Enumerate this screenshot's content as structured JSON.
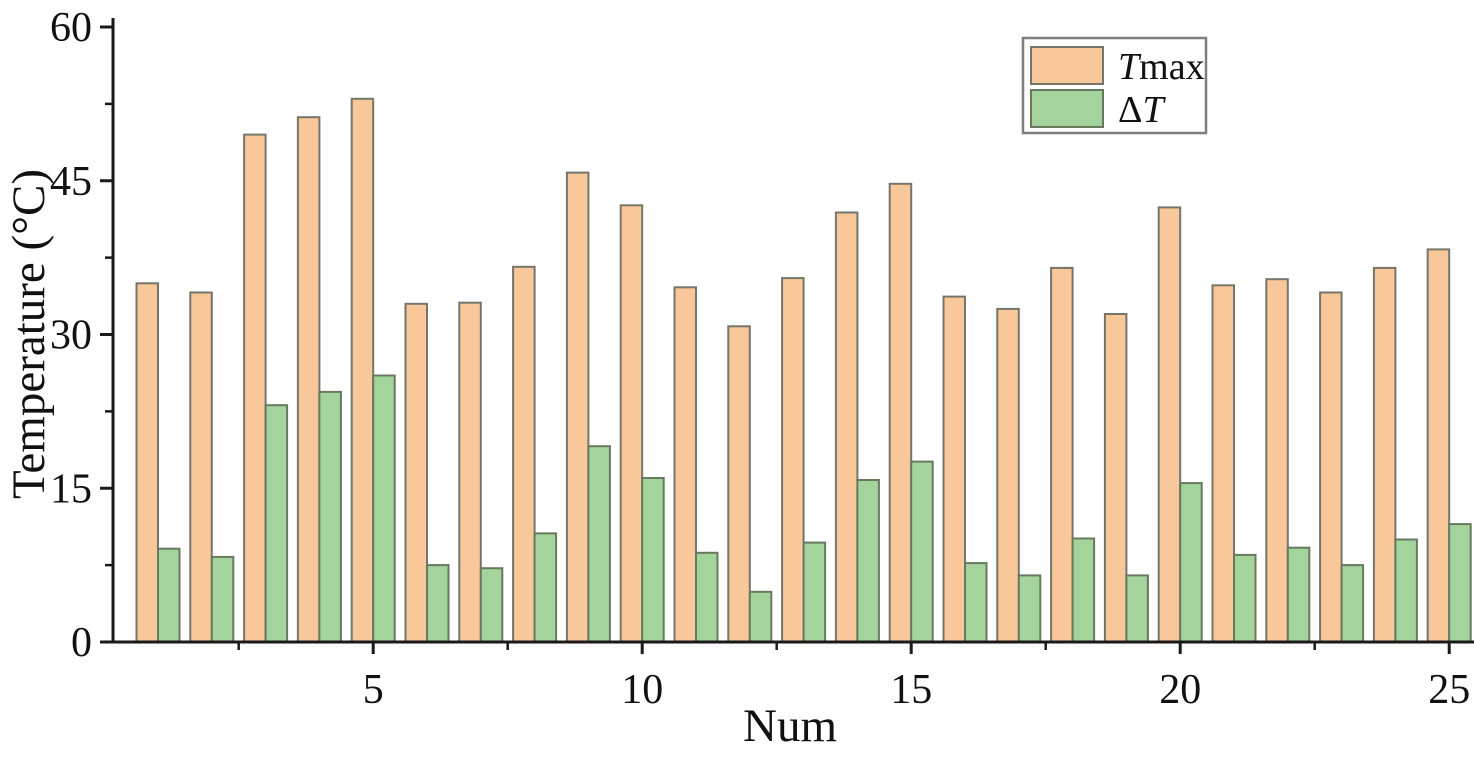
{
  "chart_data": {
    "type": "bar",
    "title": "",
    "xlabel": "Num",
    "ylabel": "Temperature (°C)",
    "categories": [
      1,
      2,
      3,
      4,
      5,
      6,
      7,
      8,
      9,
      10,
      11,
      12,
      13,
      14,
      15,
      16,
      17,
      18,
      19,
      20,
      21,
      22,
      23,
      24,
      25
    ],
    "series": [
      {
        "name": "Tmax",
        "fill": "#F9C89A",
        "border": "#75756A",
        "values": [
          35.0,
          34.1,
          49.5,
          51.2,
          53.0,
          33.0,
          33.1,
          36.6,
          45.8,
          42.6,
          34.6,
          30.8,
          35.5,
          41.9,
          44.7,
          33.7,
          32.5,
          36.5,
          32.0,
          42.4,
          34.8,
          35.4,
          34.1,
          36.5,
          38.3
        ]
      },
      {
        "name": "ΔT",
        "fill": "#A3D49B",
        "border": "#68795F",
        "values": [
          9.1,
          8.3,
          23.1,
          24.4,
          26.0,
          7.5,
          7.2,
          10.6,
          19.1,
          16.0,
          8.7,
          4.9,
          9.7,
          15.8,
          17.6,
          7.7,
          6.5,
          10.1,
          6.5,
          15.5,
          8.5,
          9.2,
          7.5,
          10.0,
          11.5
        ]
      }
    ],
    "ylim": [
      0,
      60
    ],
    "yticks_major": [
      0,
      15,
      30,
      45,
      60
    ],
    "yticks_minor": [
      7.5,
      22.5,
      37.5,
      52.5
    ],
    "xticks_major": [
      5,
      10,
      15,
      20,
      25
    ],
    "xticks_minor": [
      2.5,
      7.5,
      12.5,
      17.5,
      22.5
    ],
    "grid": false,
    "legend_position": "top-right",
    "axis_color": "#1a1a1a"
  },
  "legend": {
    "items": [
      {
        "italic_part": "T",
        "normal_part": "max",
        "order": "italic-first"
      },
      {
        "normal_part": "Δ",
        "italic_part": "T",
        "order": "normal-first"
      }
    ],
    "box_fill": "#ffffff",
    "box_border": "#7f7f7f"
  }
}
